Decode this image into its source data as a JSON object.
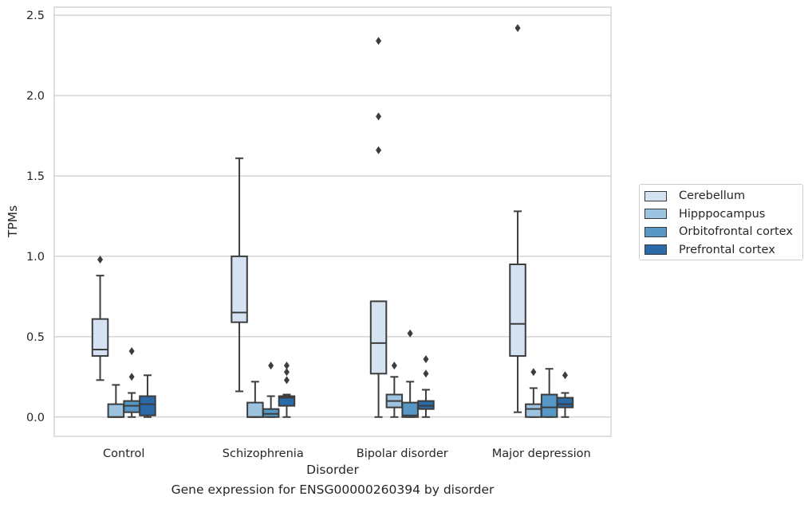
{
  "footer_title": "Gene expression for ENSG00000260394 by disorder",
  "chart_data": {
    "type": "box",
    "title": "",
    "xlabel": "Disorder",
    "ylabel": "TPMs",
    "ylim": [
      -0.12,
      2.55
    ],
    "yticks": [
      0.0,
      0.5,
      1.0,
      1.5,
      2.0,
      2.5
    ],
    "ytick_labels": [
      "0.0",
      "0.5",
      "1.0",
      "1.5",
      "2.0",
      "2.5"
    ],
    "grid": "horizontal",
    "legend_position": "right",
    "categories": [
      "Control",
      "Schizophrenia",
      "Bipolar disorder",
      "Major depression"
    ],
    "series": [
      {
        "name": "Cerebellum",
        "color": "#d4e2f1",
        "boxes": [
          {
            "whislo": 0.23,
            "q1": 0.38,
            "med": 0.42,
            "q3": 0.61,
            "whishi": 0.88,
            "fliers": [
              0.98
            ]
          },
          {
            "whislo": 0.16,
            "q1": 0.59,
            "med": 0.65,
            "q3": 1.0,
            "whishi": 1.61,
            "fliers": []
          },
          {
            "whislo": 0.0,
            "q1": 0.27,
            "med": 0.46,
            "q3": 0.72,
            "whishi": 0.72,
            "fliers": [
              1.66,
              1.87,
              2.34
            ]
          },
          {
            "whislo": 0.03,
            "q1": 0.38,
            "med": 0.58,
            "q3": 0.95,
            "whishi": 1.28,
            "fliers": [
              2.42
            ]
          }
        ]
      },
      {
        "name": "Hipppocampus",
        "color": "#9cc3df",
        "boxes": [
          {
            "whislo": 0.0,
            "q1": 0.0,
            "med": 0.0,
            "q3": 0.08,
            "whishi": 0.2,
            "fliers": []
          },
          {
            "whislo": 0.0,
            "q1": 0.0,
            "med": 0.0,
            "q3": 0.09,
            "whishi": 0.22,
            "fliers": []
          },
          {
            "whislo": 0.0,
            "q1": 0.06,
            "med": 0.1,
            "q3": 0.14,
            "whishi": 0.25,
            "fliers": [
              0.32
            ]
          },
          {
            "whislo": 0.0,
            "q1": 0.0,
            "med": 0.05,
            "q3": 0.08,
            "whishi": 0.18,
            "fliers": [
              0.28
            ]
          }
        ]
      },
      {
        "name": "Orbitofrontal cortex",
        "color": "#5797c5",
        "boxes": [
          {
            "whislo": 0.0,
            "q1": 0.03,
            "med": 0.07,
            "q3": 0.1,
            "whishi": 0.15,
            "fliers": [
              0.25,
              0.41
            ]
          },
          {
            "whislo": 0.0,
            "q1": 0.0,
            "med": 0.02,
            "q3": 0.05,
            "whishi": 0.13,
            "fliers": [
              0.32
            ]
          },
          {
            "whislo": 0.0,
            "q1": 0.0,
            "med": 0.01,
            "q3": 0.09,
            "whishi": 0.22,
            "fliers": [
              0.52
            ]
          },
          {
            "whislo": 0.0,
            "q1": 0.0,
            "med": 0.06,
            "q3": 0.14,
            "whishi": 0.3,
            "fliers": []
          }
        ]
      },
      {
        "name": "Prefrontal cortex",
        "color": "#2a6aa8",
        "boxes": [
          {
            "whislo": 0.0,
            "q1": 0.01,
            "med": 0.08,
            "q3": 0.13,
            "whishi": 0.26,
            "fliers": []
          },
          {
            "whislo": 0.0,
            "q1": 0.07,
            "med": 0.12,
            "q3": 0.13,
            "whishi": 0.14,
            "fliers": [
              0.23,
              0.28,
              0.32
            ]
          },
          {
            "whislo": 0.0,
            "q1": 0.05,
            "med": 0.07,
            "q3": 0.1,
            "whishi": 0.17,
            "fliers": [
              0.27,
              0.36
            ]
          },
          {
            "whislo": 0.0,
            "q1": 0.06,
            "med": 0.08,
            "q3": 0.12,
            "whishi": 0.15,
            "fliers": [
              0.26
            ]
          }
        ]
      }
    ]
  }
}
